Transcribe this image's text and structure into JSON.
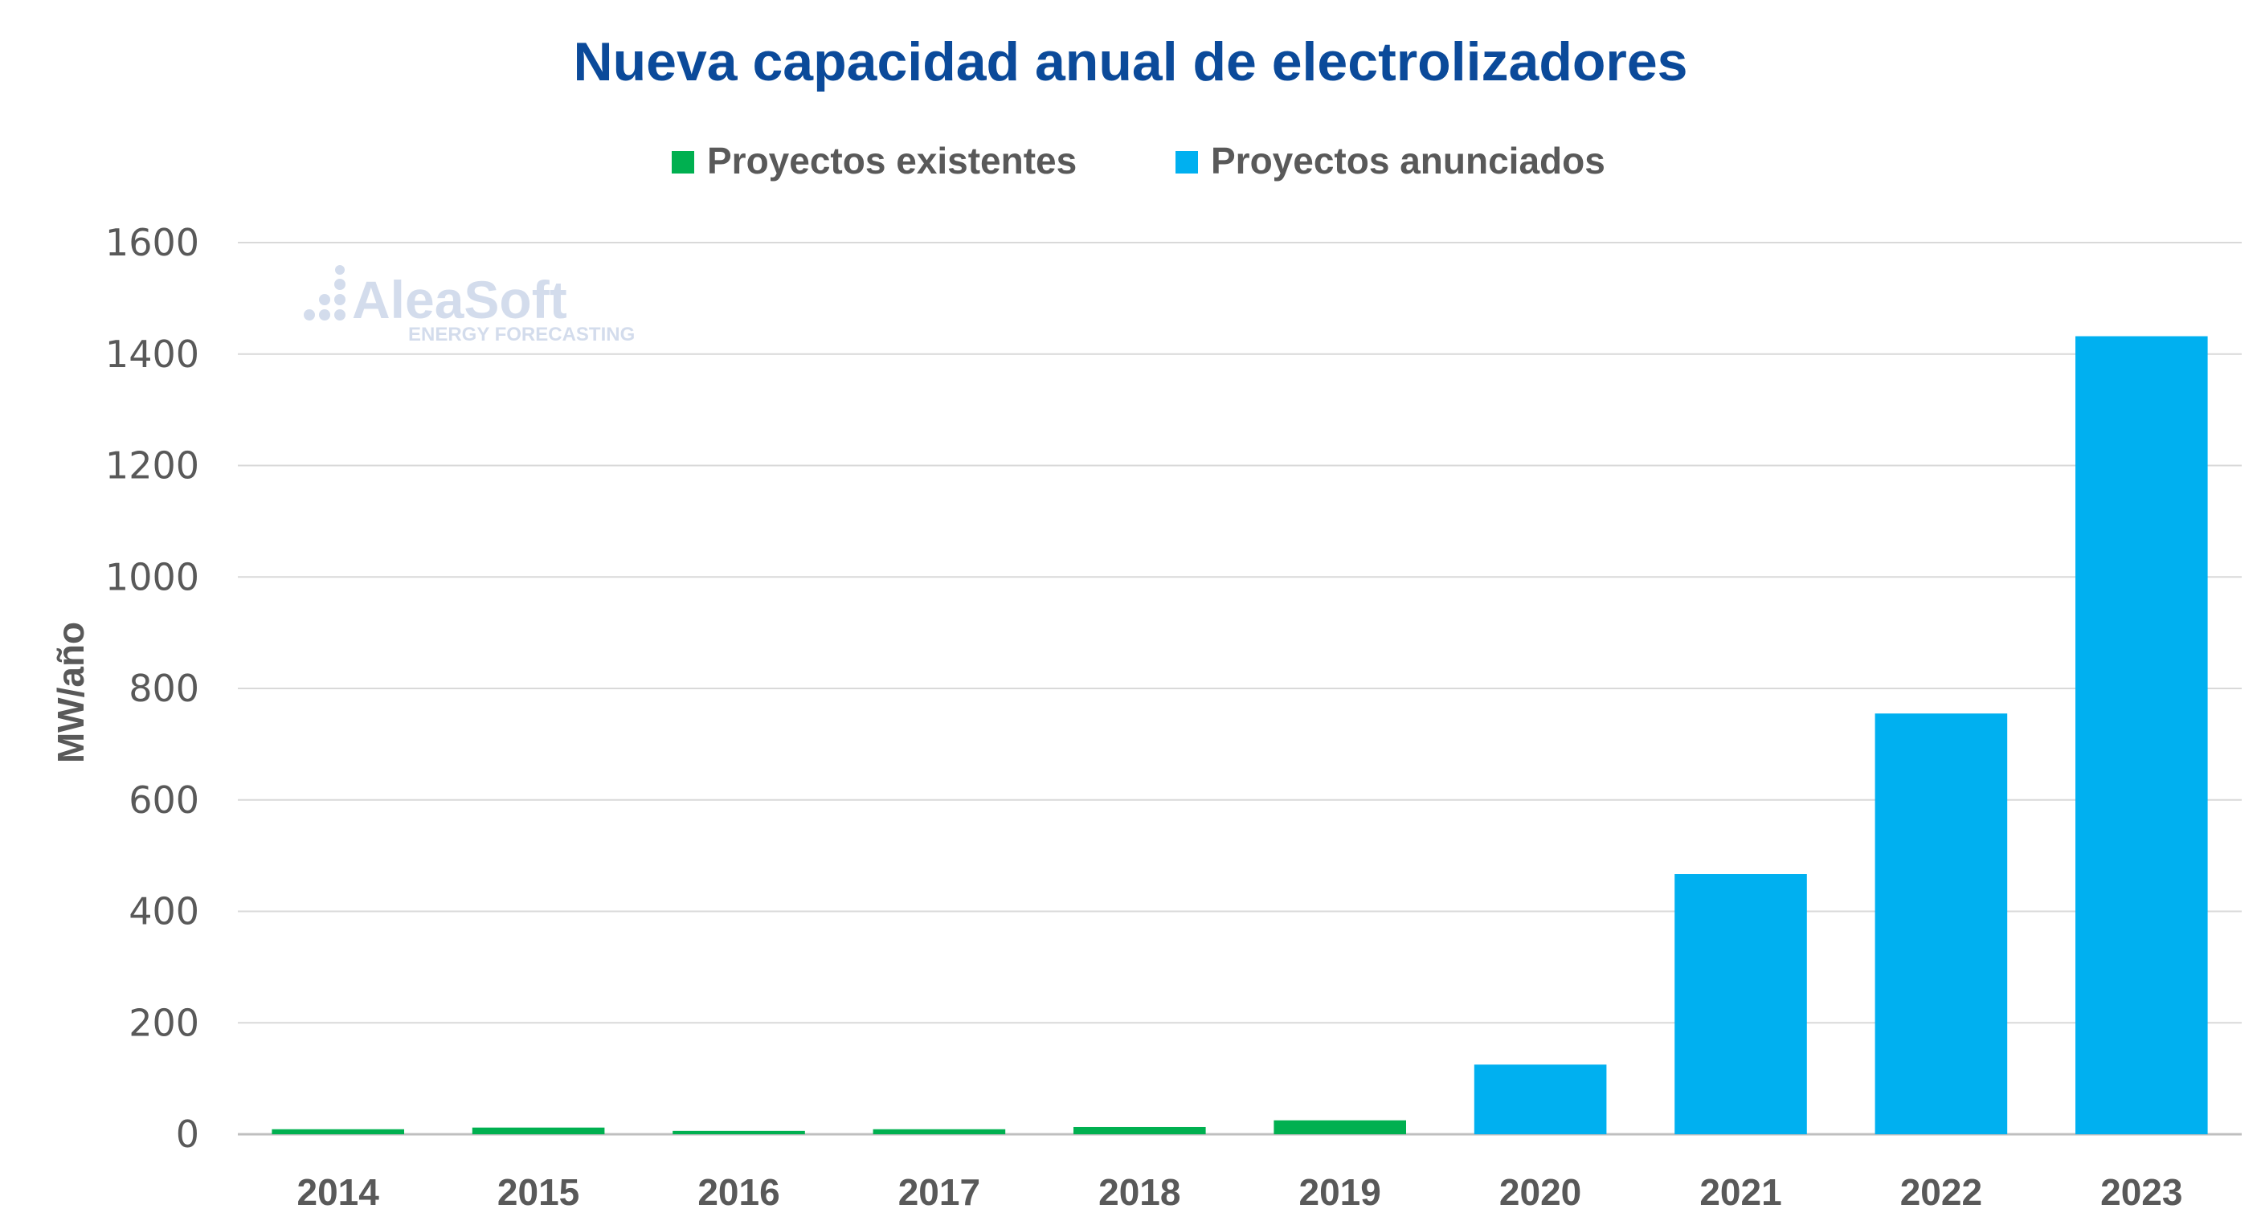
{
  "chart_data": {
    "type": "bar",
    "title": "Nueva capacidad anual de electrolizadores",
    "ylabel": "MW/año",
    "xlabel": "",
    "ylim": [
      0,
      1600
    ],
    "yticks": [
      "0",
      "200",
      "400",
      "600",
      "800",
      "1000",
      "1200",
      "1400",
      "1600"
    ],
    "grid": true,
    "legend_position": "top",
    "categories": [
      "2014",
      "2015",
      "2016",
      "2017",
      "2018",
      "2019",
      "2020",
      "2021",
      "2022",
      "2023"
    ],
    "series": [
      {
        "name": "Proyectos existentes",
        "color": "#00b050",
        "values": [
          9,
          12,
          6,
          9,
          13,
          25,
          null,
          null,
          null,
          null
        ]
      },
      {
        "name": "Proyectos anunciados",
        "color": "#00b0f0",
        "values": [
          null,
          null,
          null,
          null,
          null,
          null,
          125,
          467,
          755,
          1432
        ]
      }
    ]
  },
  "watermark": {
    "brand": "AleaSoft",
    "tagline": "ENERGY FORECASTING"
  },
  "colors": {
    "title": "#0b4a9a",
    "text": "#595959",
    "grid": "#d9d9d9"
  }
}
